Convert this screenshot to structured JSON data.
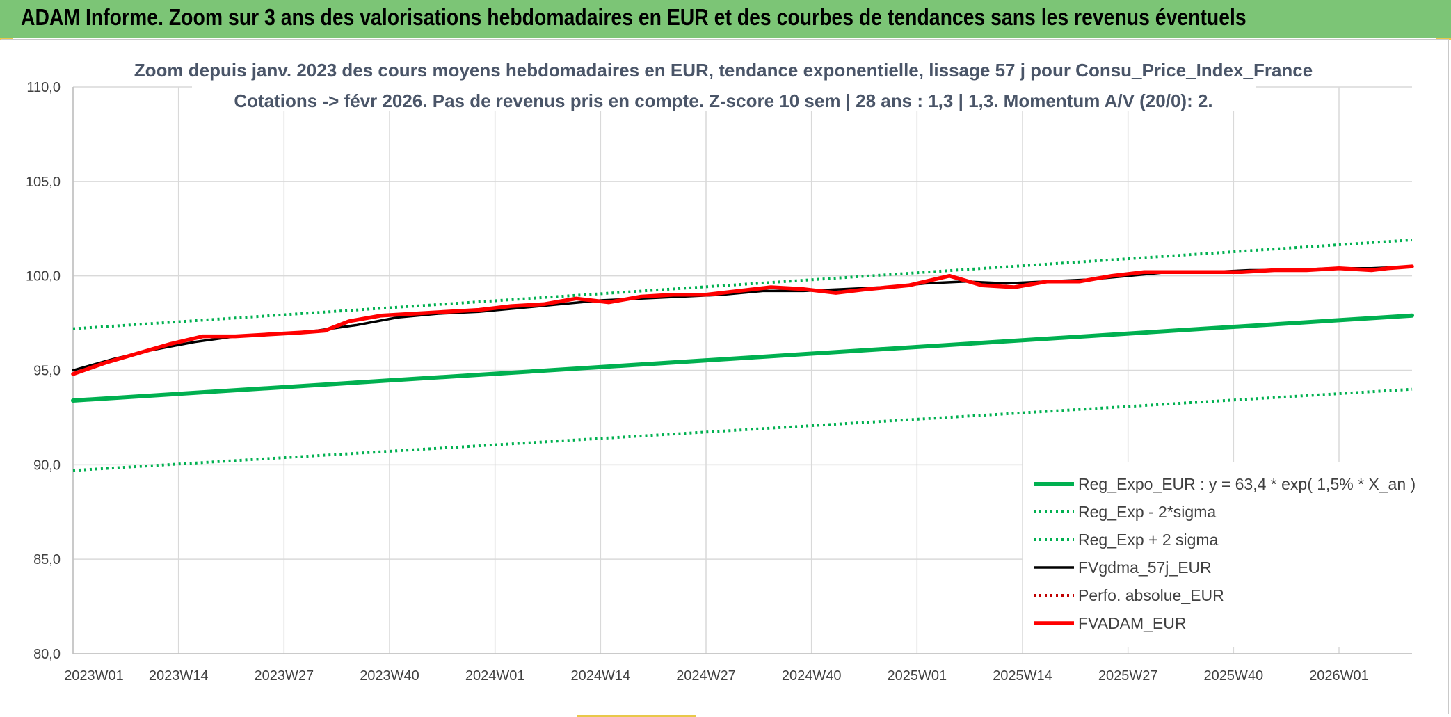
{
  "header": {
    "title": "ADAM Informe. Zoom sur 3 ans des valorisations hebdomadaires en EUR et des courbes de tendances sans les revenus éventuels"
  },
  "colors": {
    "banner": "#7cc576",
    "trend_green": "#00b050",
    "black": "#000000",
    "red": "#ff0000",
    "dotted_red": "#c00000"
  },
  "chart_data": {
    "type": "line",
    "title_line1": "Zoom depuis janv. 2023 des cours moyens hebdomadaires en EUR, tendance exponentielle, lissage 57 j pour Consu_Price_Index_France",
    "title_line2": "Cotations -> févr 2026. Pas de revenus pris en compte. Z-score 10 sem | 28 ans : 1,3 | 1,3. Momentum A/V (20/0): 2.",
    "ylim": [
      80,
      110
    ],
    "yticks": [
      "80,0",
      "85,0",
      "90,0",
      "95,0",
      "100,0",
      "105,0",
      "110,0"
    ],
    "ytick_values": [
      80,
      85,
      90,
      95,
      100,
      105,
      110
    ],
    "xlim": [
      0,
      165
    ],
    "x_tick_labels": [
      "2023W01",
      "2023W14",
      "2023W27",
      "2023W40",
      "2024W01",
      "2024W14",
      "2024W27",
      "2024W40",
      "2025W01",
      "2025W14",
      "2025W27",
      "2025W40",
      "2026W01"
    ],
    "x_tick_positions": [
      0,
      13,
      26,
      39,
      52,
      65,
      78,
      91,
      104,
      117,
      130,
      143,
      156
    ],
    "legend_position": "bottom-right",
    "series": [
      {
        "name": "Reg_Expo_EUR : y = 63,4 * exp( 1,5% *  X_an )",
        "style": "solid-thick",
        "color": "#00b050",
        "x": [
          0,
          165
        ],
        "y": [
          93.4,
          97.9
        ]
      },
      {
        "name": "Reg_Exp - 2*sigma",
        "style": "dotted",
        "color": "#00b050",
        "x": [
          0,
          165
        ],
        "y": [
          89.7,
          94.0
        ]
      },
      {
        "name": "Reg_Exp + 2 sigma",
        "style": "dotted",
        "color": "#00b050",
        "x": [
          0,
          165
        ],
        "y": [
          97.2,
          101.9
        ]
      },
      {
        "name": "FVgdma_57j_EUR",
        "style": "solid",
        "color": "#000000",
        "x": [
          0,
          5,
          10,
          15,
          20,
          25,
          30,
          35,
          40,
          45,
          50,
          55,
          60,
          65,
          70,
          75,
          80,
          85,
          90,
          95,
          100,
          105,
          110,
          115,
          120,
          125,
          130,
          135,
          140,
          145,
          150,
          155,
          160,
          165
        ],
        "y": [
          95.0,
          95.6,
          96.1,
          96.5,
          96.8,
          96.9,
          97.1,
          97.4,
          97.8,
          98.0,
          98.1,
          98.3,
          98.5,
          98.7,
          98.8,
          98.9,
          99.0,
          99.2,
          99.2,
          99.3,
          99.4,
          99.6,
          99.7,
          99.6,
          99.7,
          99.8,
          100.0,
          100.2,
          100.2,
          100.3,
          100.3,
          100.4,
          100.4,
          100.5
        ]
      },
      {
        "name": "Perfo. absolue_EUR",
        "style": "dotted",
        "color": "#c00000",
        "x": [],
        "y": []
      },
      {
        "name": "FVADAM_EUR",
        "style": "solid-thick",
        "color": "#ff0000",
        "x": [
          0,
          4,
          8,
          12,
          16,
          20,
          24,
          28,
          31,
          34,
          38,
          42,
          46,
          50,
          54,
          58,
          62,
          66,
          70,
          74,
          78,
          82,
          86,
          90,
          94,
          98,
          103,
          108,
          112,
          116,
          120,
          124,
          128,
          132,
          136,
          140,
          144,
          148,
          152,
          156,
          160,
          162,
          165
        ],
        "y": [
          94.8,
          95.4,
          95.9,
          96.4,
          96.8,
          96.8,
          96.9,
          97.0,
          97.1,
          97.6,
          97.9,
          98.0,
          98.1,
          98.2,
          98.4,
          98.5,
          98.8,
          98.6,
          98.9,
          99.0,
          99.0,
          99.2,
          99.4,
          99.3,
          99.1,
          99.3,
          99.5,
          100.0,
          99.5,
          99.4,
          99.7,
          99.7,
          100.0,
          100.2,
          100.2,
          100.2,
          100.2,
          100.3,
          100.3,
          100.4,
          100.3,
          100.4,
          100.5
        ]
      }
    ]
  }
}
